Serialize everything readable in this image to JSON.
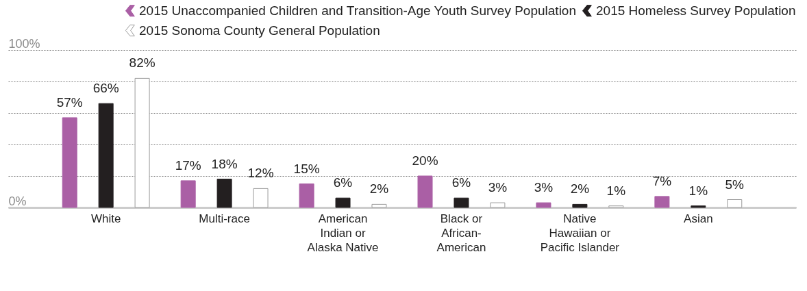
{
  "chart_data": {
    "type": "bar",
    "categories": [
      "White",
      "Multi-race",
      "American\nIndian or\nAlaska Native",
      "Black or\nAfrican-\nAmerican",
      "Native\nHawaiian or\nPacific Islander",
      "Asian"
    ],
    "series": [
      {
        "name": "2015 Unaccompanied Children and Transition-Age Youth Survey Population",
        "color": "#aa5fa5",
        "values": [
          57,
          17,
          15,
          20,
          3,
          7
        ],
        "value_labels": [
          "57%",
          "17%",
          "15%",
          "20%",
          "3%",
          "7%"
        ]
      },
      {
        "name": "2015 Homeless Survey Population",
        "color": "#231f20",
        "values": [
          66,
          18,
          6,
          6,
          2,
          1
        ],
        "value_labels": [
          "66%",
          "18%",
          "6%",
          "6%",
          "2%",
          "1%"
        ]
      },
      {
        "name": "2015 Sonoma County General Population",
        "color": "#ffffff",
        "values": [
          82,
          12,
          2,
          3,
          1,
          5
        ],
        "value_labels": [
          "82%",
          "12%",
          "2%",
          "3%",
          "1%",
          "5%"
        ]
      }
    ],
    "ylim": [
      0,
      100
    ],
    "yticks": [
      {
        "value": 0,
        "label": "0%"
      },
      {
        "value": 20,
        "label": null
      },
      {
        "value": 40,
        "label": null
      },
      {
        "value": 60,
        "label": null
      },
      {
        "value": 80,
        "label": null
      },
      {
        "value": 100,
        "label": "100%"
      }
    ],
    "grid": "y",
    "legend": "top right"
  }
}
